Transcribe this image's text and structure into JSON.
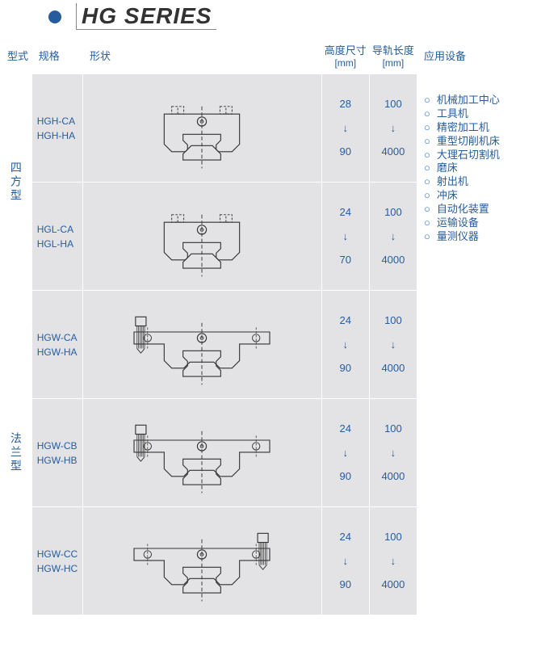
{
  "title": "HG SERIES",
  "headers": {
    "type": "型式",
    "spec": "规格",
    "shape": "形状",
    "height": "高度尺寸",
    "height_unit": "[mm]",
    "rail": "导轨长度",
    "rail_unit": "[mm]",
    "app": "应用设备"
  },
  "groups": [
    {
      "label": "四方型",
      "span": 2
    },
    {
      "label": "法兰型",
      "span": 3
    }
  ],
  "rows": [
    {
      "spec1": "HGH-CA",
      "spec2": "HGH-HA",
      "h1": "28",
      "h2": "↓",
      "h3": "90",
      "r1": "100",
      "r2": "↓",
      "r3": "4000",
      "shape": "sq1"
    },
    {
      "spec1": "HGL-CA",
      "spec2": "HGL-HA",
      "h1": "24",
      "h2": "↓",
      "h3": "70",
      "r1": "100",
      "r2": "↓",
      "r3": "4000",
      "shape": "sq2"
    },
    {
      "spec1": "HGW-CA",
      "spec2": "HGW-HA",
      "h1": "24",
      "h2": "↓",
      "h3": "90",
      "r1": "100",
      "r2": "↓",
      "r3": "4000",
      "shape": "fl1"
    },
    {
      "spec1": "HGW-CB",
      "spec2": "HGW-HB",
      "h1": "24",
      "h2": "↓",
      "h3": "90",
      "r1": "100",
      "r2": "↓",
      "r3": "4000",
      "shape": "fl2"
    },
    {
      "spec1": "HGW-CC",
      "spec2": "HGW-HC",
      "h1": "24",
      "h2": "↓",
      "h3": "90",
      "r1": "100",
      "r2": "↓",
      "r3": "4000",
      "shape": "fl3"
    }
  ],
  "applications": [
    "机械加工中心",
    "工具机",
    "精密加工机",
    "重型切削机床",
    "大理石切割机",
    "磨床",
    "射出机",
    "冲床",
    "自动化装置",
    "运输设备",
    "量测仪器"
  ],
  "diagram_style": {
    "stroke": "#333333",
    "stroke_width": 1.2,
    "dash": "4 3",
    "fill": "none",
    "background": "#e3e3e5"
  }
}
